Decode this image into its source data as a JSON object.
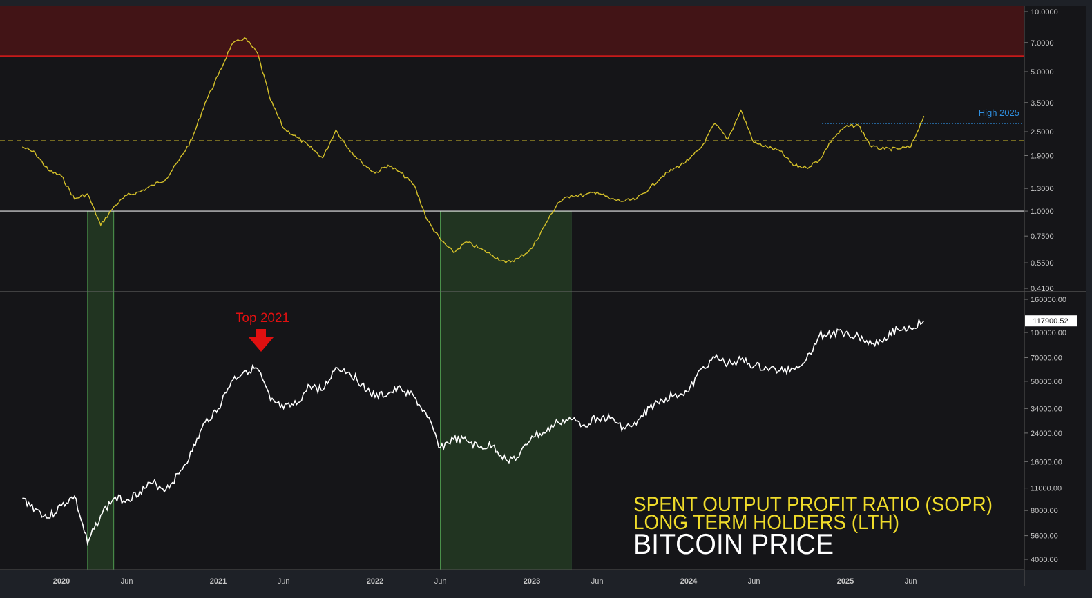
{
  "colors": {
    "background": "#151518",
    "frame": "#1e2127",
    "sopr_line": "#d4c02a",
    "price_line": "#ffffff",
    "danger_zone": "#421416",
    "danger_line": "#e01b1b",
    "green_zone": "#213421",
    "green_border": "#4f9a4f",
    "high_label": "#2f8fe0",
    "top_label": "#e01010",
    "axis_text": "#c8c8c8",
    "title_yellow": "#f0dc2a",
    "title_white": "#ffffff"
  },
  "annotations": {
    "top_label": "Top 2021",
    "top_arrow_icon": "down-arrow-icon",
    "high_label": "High 2025"
  },
  "legend": {
    "line1": "SPENT OUTPUT PROFIT RATIO (SOPR)",
    "line2": "LONG TERM HOLDERS (LTH)",
    "line3": "BITCOIN PRICE"
  },
  "chart_data": [
    {
      "type": "line",
      "scale": "log",
      "ylim": [
        0.41,
        10.0
      ],
      "y_ticks": [
        "10.0000",
        "7.0000",
        "5.0000",
        "3.5000",
        "2.5000",
        "1.9000",
        "1.3000",
        "1.0000",
        "0.7500",
        "0.5500",
        "0.4100"
      ],
      "y_tick_values": [
        10,
        7,
        5,
        3.5,
        2.5,
        1.9,
        1.3,
        1.0,
        0.75,
        0.55,
        0.41
      ],
      "reference_lines": {
        "danger_threshold": 6.0,
        "dashed_level": 2.25,
        "baseline": 1.0,
        "high_2025": 2.75
      },
      "danger_zone": [
        6.0,
        10.0
      ],
      "series": [
        {
          "x": [
            "2019-10",
            "2019-11",
            "2019-12",
            "2020-01",
            "2020-02",
            "2020-03",
            "2020-04",
            "2020-05",
            "2020-06",
            "2020-07",
            "2020-08",
            "2020-09",
            "2020-10",
            "2020-11",
            "2020-12",
            "2021-01",
            "2021-02",
            "2021-03",
            "2021-04",
            "2021-05",
            "2021-06",
            "2021-07",
            "2021-08",
            "2021-09",
            "2021-10",
            "2021-11",
            "2021-12",
            "2022-01",
            "2022-02",
            "2022-03",
            "2022-04",
            "2022-05",
            "2022-06",
            "2022-07",
            "2022-08",
            "2022-09",
            "2022-10",
            "2022-11",
            "2022-12",
            "2023-01",
            "2023-02",
            "2023-03",
            "2023-04",
            "2023-05",
            "2023-06",
            "2023-07",
            "2023-08",
            "2023-09",
            "2023-10",
            "2023-11",
            "2023-12",
            "2024-01",
            "2024-02",
            "2024-03",
            "2024-04",
            "2024-05",
            "2024-06",
            "2024-07",
            "2024-08",
            "2024-09",
            "2024-10",
            "2024-11",
            "2024-12",
            "2025-01",
            "2025-02",
            "2025-03",
            "2025-04",
            "2025-05",
            "2025-06",
            "2025-07"
          ],
          "values": [
            2.1,
            1.95,
            1.6,
            1.5,
            1.15,
            1.22,
            0.85,
            1.05,
            1.2,
            1.25,
            1.35,
            1.45,
            1.8,
            2.3,
            3.5,
            4.8,
            6.8,
            7.4,
            6.2,
            3.6,
            2.6,
            2.35,
            2.1,
            1.85,
            2.55,
            2.05,
            1.75,
            1.55,
            1.7,
            1.55,
            1.35,
            0.9,
            0.72,
            0.62,
            0.7,
            0.65,
            0.6,
            0.55,
            0.58,
            0.65,
            0.85,
            1.1,
            1.2,
            1.2,
            1.25,
            1.15,
            1.12,
            1.15,
            1.3,
            1.5,
            1.65,
            1.8,
            2.1,
            2.75,
            2.3,
            3.2,
            2.2,
            2.1,
            2.0,
            1.7,
            1.65,
            1.8,
            2.3,
            2.65,
            2.7,
            2.1,
            2.05,
            2.05,
            2.1,
            3.0
          ]
        }
      ]
    },
    {
      "type": "line",
      "scale": "log",
      "ylim": [
        4000,
        160000
      ],
      "y_ticks": [
        "160000.00",
        "100000.00",
        "70000.00",
        "50000.00",
        "34000.00",
        "24000.00",
        "16000.00",
        "11000.00",
        "8000.00",
        "5600.00",
        "4000.00"
      ],
      "y_tick_values": [
        160000,
        100000,
        70000,
        50000,
        34000,
        24000,
        16000,
        11000,
        8000,
        5600,
        4000
      ],
      "last_price": "117900.52",
      "series": [
        {
          "x": [
            "2019-10",
            "2019-11",
            "2019-12",
            "2020-01",
            "2020-02",
            "2020-03",
            "2020-04",
            "2020-05",
            "2020-06",
            "2020-07",
            "2020-08",
            "2020-09",
            "2020-10",
            "2020-11",
            "2020-12",
            "2021-01",
            "2021-02",
            "2021-03",
            "2021-04",
            "2021-05",
            "2021-06",
            "2021-07",
            "2021-08",
            "2021-09",
            "2021-10",
            "2021-11",
            "2021-12",
            "2022-01",
            "2022-02",
            "2022-03",
            "2022-04",
            "2022-05",
            "2022-06",
            "2022-07",
            "2022-08",
            "2022-09",
            "2022-10",
            "2022-11",
            "2022-12",
            "2023-01",
            "2023-02",
            "2023-03",
            "2023-04",
            "2023-05",
            "2023-06",
            "2023-07",
            "2023-08",
            "2023-09",
            "2023-10",
            "2023-11",
            "2023-12",
            "2024-01",
            "2024-02",
            "2024-03",
            "2024-04",
            "2024-05",
            "2024-06",
            "2024-07",
            "2024-08",
            "2024-09",
            "2024-10",
            "2024-11",
            "2024-12",
            "2025-01",
            "2025-02",
            "2025-03",
            "2025-04",
            "2025-05",
            "2025-06",
            "2025-07"
          ],
          "values": [
            9500,
            8200,
            7200,
            8600,
            9800,
            5000,
            7500,
            9500,
            9300,
            10500,
            11800,
            10800,
            13500,
            18500,
            28000,
            34000,
            50000,
            58000,
            60000,
            38000,
            34000,
            36000,
            47000,
            44000,
            61000,
            57000,
            48000,
            40000,
            42000,
            45000,
            40000,
            30000,
            19500,
            22000,
            21500,
            19500,
            20000,
            16500,
            17000,
            23000,
            24000,
            28000,
            29000,
            27000,
            30000,
            29500,
            26000,
            27000,
            34500,
            38000,
            42000,
            43000,
            60000,
            70000,
            64000,
            68000,
            62000,
            60000,
            58000,
            60000,
            68000,
            96000,
            98000,
            100000,
            95000,
            85000,
            93000,
            105000,
            106000,
            117900.52
          ]
        }
      ]
    }
  ],
  "green_zones": [
    [
      "2020-03",
      "2020-05"
    ],
    [
      "2022-06",
      "2023-04"
    ]
  ],
  "x_axis": {
    "ticks": [
      "2020",
      "Jun",
      "2021",
      "Jun",
      "2022",
      "Jun",
      "2023",
      "Jun",
      "2024",
      "Jun",
      "2025",
      "Jun"
    ],
    "tick_dates": [
      "2020-01",
      "2020-06",
      "2021-01",
      "2021-06",
      "2022-01",
      "2022-06",
      "2023-01",
      "2023-06",
      "2024-01",
      "2024-06",
      "2025-01",
      "2025-06"
    ]
  }
}
